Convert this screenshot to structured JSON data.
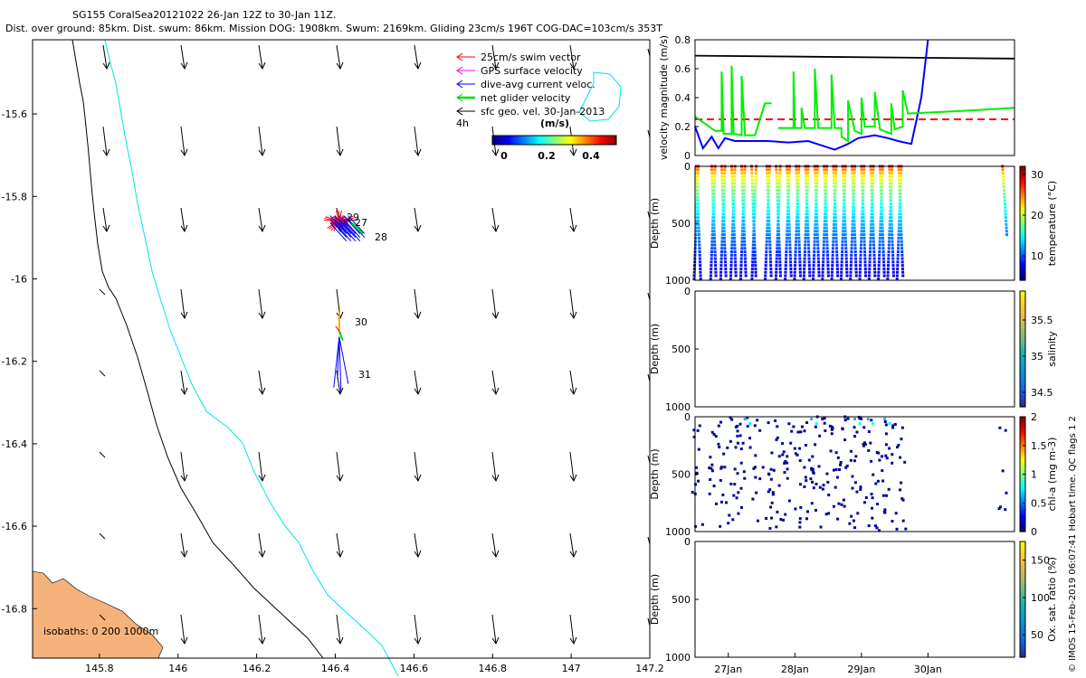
{
  "header": {
    "line1": "SG155 CoralSea20121022 26-Jan 12Z to 30-Jan 11Z.",
    "line2": "Dist. over ground: 85km. Dist. swum: 86km. Mission DOG: 1908km. Swum: 2169km. Gliding 23cm/s 196T COG-DAC=103cm/s 353T"
  },
  "map": {
    "legend": [
      {
        "label": "25cm/s swim vector",
        "color": "#ff0000"
      },
      {
        "label": "GPS surface velocity",
        "color": "#ff00ff"
      },
      {
        "label": "dive-avg current veloc.",
        "color": "#0000ff"
      },
      {
        "label": "net glider velocity",
        "color": "#00dd00"
      },
      {
        "label": "sfc geo. vel. 30-Jan-2013",
        "color": "#000000"
      }
    ],
    "interval_label": "4h",
    "colorbar_title": "(m/s)",
    "colorbar_ticks": [
      "0",
      "0.2",
      "0.4"
    ],
    "isobaths_label": "isobaths: 0   200  1000m",
    "day_labels": [
      "29",
      "27",
      "28",
      "30",
      "31"
    ],
    "land_color": "#f5b27a",
    "coast_1000m_color": "#000000",
    "isobath_200m_color": "#00e5e5"
  },
  "chart_data": [
    {
      "type": "scatter",
      "name": "track-map",
      "xlim": [
        145.63,
        147.2
      ],
      "ylim": [
        -16.92,
        -15.42
      ],
      "x_ticks": [
        145.8,
        146,
        146.2,
        146.4,
        146.6,
        146.8,
        147,
        147.2
      ],
      "x_tick_labels": [
        "145.8",
        "146",
        "146.2",
        "146.4",
        "146.6",
        "146.8",
        "147",
        "147.2"
      ],
      "y_ticks": [
        -15.6,
        -15.8,
        -16,
        -16.2,
        -16.4,
        -16.6,
        -16.8
      ],
      "y_tick_labels": [
        "-15.6",
        "-15.8",
        "-16",
        "-16.2",
        "-16.4",
        "-16.6",
        "-16.8"
      ],
      "glider_track": [
        [
          146.395,
          -15.84
        ],
        [
          146.43,
          -15.86
        ],
        [
          146.46,
          -15.9
        ],
        [
          146.41,
          -15.87
        ],
        [
          146.41,
          -16.1
        ],
        [
          146.41,
          -16.18
        ],
        [
          146.42,
          -16.28
        ]
      ],
      "geostrophic_vectors": "grid of black current arrows pointing mostly south"
    },
    {
      "type": "line",
      "name": "velocity",
      "ylabel": "velocity magnitude (m/s)",
      "ylim": [
        0,
        0.8
      ],
      "y_ticks": [
        0,
        0.2,
        0.4,
        0.6,
        0.8
      ],
      "xlim": [
        26.5,
        31.3
      ],
      "series": [
        {
          "color": "#000000",
          "values": [
            [
              26.5,
              0.69
            ],
            [
              31.3,
              0.67
            ]
          ]
        },
        {
          "color": "#ff0000",
          "dash": true,
          "values": [
            [
              26.5,
              0.25
            ],
            [
              31.3,
              0.25
            ]
          ]
        },
        {
          "color": "#0000ff",
          "values": [
            [
              26.5,
              0.2
            ],
            [
              26.62,
              0.05
            ],
            [
              26.75,
              0.13
            ],
            [
              26.85,
              0.05
            ],
            [
              26.95,
              0.12
            ],
            [
              27.1,
              0.1
            ],
            [
              27.4,
              0.1
            ],
            [
              27.6,
              0.1
            ],
            [
              27.9,
              0.09
            ],
            [
              28.2,
              0.1
            ],
            [
              28.4,
              0.07
            ],
            [
              28.6,
              0.04
            ],
            [
              28.8,
              0.08
            ],
            [
              28.95,
              0.12
            ],
            [
              29.2,
              0.14
            ],
            [
              29.4,
              0.12
            ],
            [
              29.55,
              0.1
            ],
            [
              29.75,
              0.08
            ],
            [
              29.9,
              0.4
            ],
            [
              30.0,
              0.8
            ]
          ]
        },
        {
          "color": "#00ee00",
          "values": [
            [
              26.5,
              0.27
            ],
            [
              26.8,
              0.17
            ],
            [
              26.9,
              0.17
            ],
            [
              26.9,
              0.58
            ],
            [
              26.93,
              0.15
            ],
            [
              27.05,
              0.15
            ],
            [
              27.05,
              0.62
            ],
            [
              27.08,
              0.15
            ],
            [
              27.2,
              0.14
            ],
            [
              27.2,
              0.55
            ],
            [
              27.25,
              0.14
            ],
            [
              27.4,
              0.14
            ],
            [
              27.55,
              0.36
            ],
            [
              27.65,
              0.36
            ]
          ]
        },
        {
          "color": "#00ee00",
          "values": [
            [
              27.75,
              0.19
            ],
            [
              27.98,
              0.19
            ],
            [
              27.98,
              0.58
            ],
            [
              28.0,
              0.19
            ],
            [
              28.1,
              0.19
            ],
            [
              28.1,
              0.33
            ],
            [
              28.15,
              0.19
            ],
            [
              28.3,
              0.19
            ],
            [
              28.3,
              0.6
            ],
            [
              28.35,
              0.19
            ],
            [
              28.55,
              0.19
            ],
            [
              28.55,
              0.56
            ],
            [
              28.6,
              0.19
            ],
            [
              28.7,
              0.19
            ],
            [
              28.7,
              0.13
            ],
            [
              28.8,
              0.1
            ],
            [
              28.8,
              0.38
            ],
            [
              28.9,
              0.17
            ],
            [
              29.0,
              0.15
            ],
            [
              29.0,
              0.4
            ],
            [
              29.05,
              0.2
            ],
            [
              29.2,
              0.2
            ],
            [
              29.2,
              0.44
            ],
            [
              29.28,
              0.18
            ],
            [
              29.45,
              0.15
            ],
            [
              29.45,
              0.36
            ],
            [
              29.5,
              0.18
            ],
            [
              29.62,
              0.2
            ],
            [
              29.62,
              0.45
            ],
            [
              29.7,
              0.29
            ],
            [
              30.6,
              0.31
            ],
            [
              31.3,
              0.33
            ]
          ]
        }
      ]
    },
    {
      "type": "scatter",
      "name": "temperature",
      "ylabel": "Depth (m)",
      "colorbar_label": "temperature (°C)",
      "colorbar_ticks": [
        "10",
        "20",
        "30"
      ],
      "colorbar_range": [
        4,
        32
      ],
      "ylim": [
        1000,
        0
      ],
      "y_ticks": [
        0,
        500,
        1000
      ],
      "profile_days": [
        26.52,
        26.55,
        26.75,
        26.8,
        26.9,
        26.95,
        27.05,
        27.1,
        27.2,
        27.25,
        27.35,
        27.42,
        27.58,
        27.62,
        27.72,
        27.78,
        27.88,
        27.92,
        28.02,
        28.06,
        28.16,
        28.2,
        28.3,
        28.34,
        28.44,
        28.48,
        28.58,
        28.62,
        28.72,
        28.76,
        28.86,
        28.9,
        29.0,
        29.04,
        29.14,
        29.18,
        29.28,
        29.32,
        29.42,
        29.46,
        29.56,
        29.6,
        31.12
      ]
    },
    {
      "type": "scatter",
      "name": "salinity",
      "ylabel": "Depth (m)",
      "colorbar_label": "salinity",
      "colorbar_ticks": [
        "34.5",
        "35",
        "35.5"
      ],
      "colorbar_range": [
        34.3,
        35.9
      ],
      "ylim": [
        1000,
        0
      ],
      "y_ticks": [
        0,
        500,
        1000
      ]
    },
    {
      "type": "scatter",
      "name": "chlorophyll",
      "ylabel": "Depth (m)",
      "colorbar_label": "chl-a (mg m-3)",
      "colorbar_ticks": [
        "0",
        "0.5",
        "1",
        "1.5",
        "2"
      ],
      "colorbar_range": [
        0,
        2
      ],
      "ylim": [
        1000,
        0
      ],
      "y_ticks": [
        0,
        500,
        1000
      ]
    },
    {
      "type": "scatter",
      "name": "oxygen",
      "ylabel": "Depth (m)",
      "colorbar_label": "Ox. sat. ratio (%)",
      "colorbar_ticks": [
        "50",
        "100",
        "150"
      ],
      "colorbar_range": [
        20,
        175
      ],
      "ylim": [
        1000,
        0
      ],
      "y_ticks": [
        0,
        500,
        1000
      ],
      "x_ticks": [
        27,
        28,
        29,
        30
      ],
      "x_tick_labels": [
        "27Jan",
        "28Jan",
        "29Jan",
        "30Jan"
      ]
    }
  ],
  "footer": {
    "credit": "© IMOS 15-Feb-2019 06:07:41 Hobart time. QC flags 1  2"
  }
}
